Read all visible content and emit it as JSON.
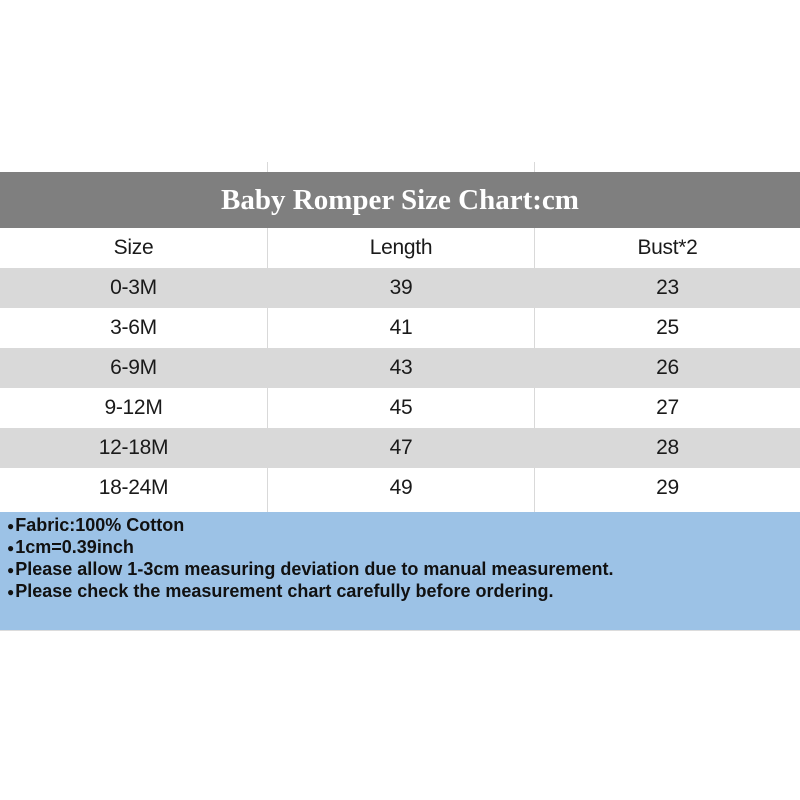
{
  "chart_data": {
    "type": "table",
    "title": "Baby Romper Size Chart:cm",
    "unit": "cm",
    "columns": [
      "Size",
      "Length",
      "Bust*2"
    ],
    "rows": [
      [
        "0-3M",
        39,
        23
      ],
      [
        "3-6M",
        41,
        25
      ],
      [
        "6-9M",
        43,
        26
      ],
      [
        "9-12M",
        45,
        27
      ],
      [
        "12-18M",
        47,
        28
      ],
      [
        "18-24M",
        49,
        29
      ]
    ],
    "notes": [
      "Fabric:100% Cotton",
      "1cm=0.39inch",
      "Please allow 1-3cm measuring deviation due to manual measurement.",
      "Please check the measurement chart carefully before ordering."
    ]
  },
  "notes": {
    "bullet": "●"
  },
  "colors": {
    "title_bar_bg": "#7f7f7f",
    "title_text": "#ffffff",
    "row_alt_bg": "#d9d9d9",
    "grid_line": "#d9d9d9",
    "notes_bg": "#9cc2e6",
    "notes_text": "#111111",
    "table_text": "#1a1a1a"
  }
}
